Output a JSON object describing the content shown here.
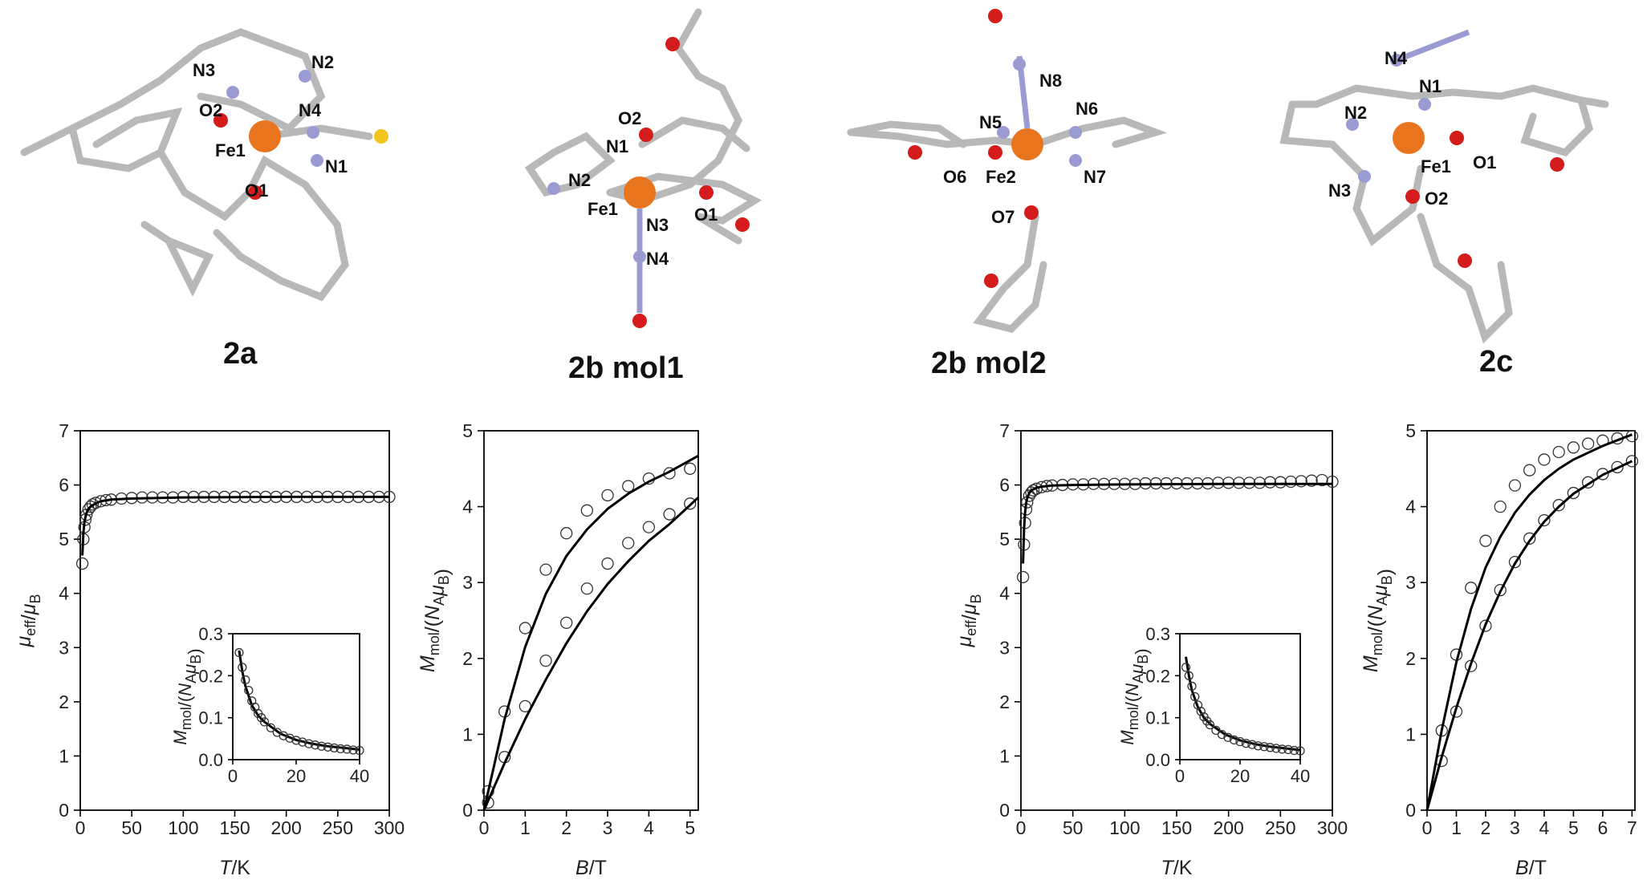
{
  "structures": [
    {
      "label": "2a",
      "metal": "Fe1",
      "atoms": [
        "N3",
        "N2",
        "O2",
        "N4",
        "Fe1",
        "N1",
        "O1"
      ]
    },
    {
      "label": "2b mol1",
      "metal": "Fe1",
      "atoms": [
        "O2",
        "N1",
        "N2",
        "Fe1",
        "N3",
        "O1",
        "N4"
      ]
    },
    {
      "label": "2b mol2",
      "metal": "Fe2",
      "atoms": [
        "N8",
        "N5",
        "N6",
        "O6",
        "Fe2",
        "N7",
        "O7"
      ]
    },
    {
      "label": "2c",
      "metal": "Fe1",
      "atoms": [
        "N4",
        "N1",
        "N2",
        "Fe1",
        "O1",
        "N3",
        "O2"
      ]
    }
  ],
  "colors": {
    "iron": "#e8741e",
    "nitrogen": "#9b9bd4",
    "oxygen": "#d41c1c",
    "sulfur": "#f2c61e",
    "carbon": "#c9c9c9",
    "curve": "#000000",
    "marker": "#333333"
  },
  "chart_data": [
    {
      "type": "scatter",
      "title": "",
      "compound": "2a",
      "xlabel": "T/K",
      "ylabel": "μeff/μB",
      "xlim": [
        0,
        300
      ],
      "ylim": [
        0,
        7
      ],
      "xticks": [
        0,
        50,
        100,
        150,
        200,
        250,
        300
      ],
      "yticks": [
        0,
        1,
        2,
        3,
        4,
        5,
        6,
        7
      ],
      "series": [
        {
          "kind": "points",
          "x": [
            2,
            3,
            4,
            5,
            6,
            8,
            10,
            12,
            15,
            20,
            25,
            30,
            40,
            50,
            60,
            70,
            80,
            90,
            100,
            110,
            120,
            130,
            140,
            150,
            160,
            170,
            180,
            190,
            200,
            210,
            220,
            230,
            240,
            250,
            260,
            270,
            280,
            290,
            300
          ],
          "y": [
            4.55,
            5.0,
            5.22,
            5.36,
            5.45,
            5.55,
            5.6,
            5.64,
            5.67,
            5.7,
            5.72,
            5.73,
            5.75,
            5.76,
            5.77,
            5.77,
            5.77,
            5.77,
            5.78,
            5.78,
            5.78,
            5.78,
            5.78,
            5.78,
            5.78,
            5.78,
            5.78,
            5.78,
            5.78,
            5.78,
            5.78,
            5.78,
            5.78,
            5.78,
            5.78,
            5.78,
            5.78,
            5.78,
            5.78
          ]
        },
        {
          "kind": "fit",
          "x": [
            2,
            3,
            4,
            5,
            6,
            8,
            10,
            15,
            20,
            30,
            50,
            100,
            200,
            300
          ],
          "y": [
            4.7,
            5.1,
            5.3,
            5.4,
            5.48,
            5.56,
            5.6,
            5.66,
            5.7,
            5.73,
            5.75,
            5.77,
            5.78,
            5.78
          ]
        }
      ],
      "inset": {
        "xlabel": "",
        "ylabel": "Mmol/(NAμB)",
        "xlim": [
          0,
          40
        ],
        "ylim": [
          0,
          0.3
        ],
        "xticks": [
          0,
          20,
          40
        ],
        "yticks": [
          0.0,
          0.1,
          0.2,
          0.3
        ],
        "points": {
          "x": [
            2,
            3,
            4,
            5,
            6,
            7,
            8,
            9,
            10,
            12,
            14,
            16,
            18,
            20,
            22,
            24,
            26,
            28,
            30,
            32,
            34,
            36,
            38,
            40
          ],
          "y": [
            0.255,
            0.22,
            0.19,
            0.165,
            0.14,
            0.125,
            0.11,
            0.1,
            0.09,
            0.076,
            0.065,
            0.057,
            0.051,
            0.046,
            0.042,
            0.038,
            0.035,
            0.032,
            0.03,
            0.028,
            0.026,
            0.025,
            0.023,
            0.022
          ]
        },
        "fit": {
          "x": [
            2,
            3,
            4,
            6,
            8,
            10,
            15,
            20,
            25,
            30,
            40
          ],
          "y": [
            0.26,
            0.21,
            0.175,
            0.13,
            0.105,
            0.09,
            0.062,
            0.047,
            0.038,
            0.032,
            0.024
          ]
        }
      }
    },
    {
      "type": "scatter",
      "title": "",
      "compound": "2a",
      "xlabel": "B/T",
      "ylabel": "Mmol/(NAμB)",
      "xlim": [
        0,
        5.2
      ],
      "ylim": [
        0,
        5
      ],
      "xticks": [
        0,
        1,
        2,
        3,
        4,
        5
      ],
      "yticks": [
        0,
        1,
        2,
        3,
        4,
        5
      ],
      "series": [
        {
          "kind": "points",
          "name": "",
          "x": [
            0.1,
            0.5,
            1.0,
            1.5,
            2.0,
            2.5,
            3.0,
            3.5,
            4.0,
            4.5,
            5.0
          ],
          "y": [
            0.25,
            1.3,
            2.4,
            3.17,
            3.65,
            3.95,
            4.15,
            4.27,
            4.37,
            4.44,
            4.5
          ]
        },
        {
          "kind": "points",
          "name": "",
          "x": [
            0.1,
            0.5,
            1.0,
            1.5,
            2.0,
            2.5,
            3.0,
            3.5,
            4.0,
            4.5,
            5.0
          ],
          "y": [
            0.1,
            0.7,
            1.37,
            1.97,
            2.47,
            2.92,
            3.25,
            3.52,
            3.73,
            3.9,
            4.04
          ]
        },
        {
          "kind": "fit",
          "x": [
            0,
            0.5,
            1.0,
            1.5,
            2.0,
            2.5,
            3.0,
            3.5,
            4.0,
            4.5,
            5.2
          ],
          "y": [
            0,
            1.2,
            2.15,
            2.85,
            3.35,
            3.7,
            3.97,
            4.17,
            4.33,
            4.46,
            4.67
          ]
        },
        {
          "kind": "fit",
          "x": [
            0,
            0.5,
            1.0,
            1.5,
            2.0,
            2.5,
            3.0,
            3.5,
            4.0,
            4.5,
            5.2
          ],
          "y": [
            0,
            0.62,
            1.2,
            1.72,
            2.2,
            2.62,
            2.98,
            3.28,
            3.55,
            3.77,
            4.12
          ]
        }
      ]
    },
    {
      "type": "scatter",
      "title": "",
      "compound": "2c",
      "xlabel": "T/K",
      "ylabel": "μeff/μB",
      "xlim": [
        0,
        300
      ],
      "ylim": [
        0,
        7
      ],
      "xticks": [
        0,
        50,
        100,
        150,
        200,
        250,
        300
      ],
      "yticks": [
        0,
        1,
        2,
        3,
        4,
        5,
        6,
        7
      ],
      "series": [
        {
          "kind": "points",
          "x": [
            2,
            3,
            4,
            5,
            6,
            8,
            10,
            12,
            15,
            20,
            25,
            30,
            40,
            50,
            60,
            70,
            80,
            90,
            100,
            110,
            120,
            130,
            140,
            150,
            160,
            170,
            180,
            190,
            200,
            210,
            220,
            230,
            240,
            250,
            260,
            270,
            280,
            290,
            300
          ],
          "y": [
            4.3,
            4.9,
            5.3,
            5.55,
            5.68,
            5.8,
            5.86,
            5.9,
            5.93,
            5.96,
            5.98,
            5.99,
            6.0,
            6.01,
            6.01,
            6.02,
            6.02,
            6.02,
            6.02,
            6.02,
            6.03,
            6.03,
            6.03,
            6.03,
            6.03,
            6.03,
            6.03,
            6.04,
            6.04,
            6.04,
            6.04,
            6.04,
            6.05,
            6.05,
            6.06,
            6.07,
            6.08,
            6.09,
            6.06
          ]
        },
        {
          "kind": "fit",
          "x": [
            2,
            3,
            4,
            5,
            6,
            8,
            10,
            15,
            20,
            30,
            50,
            100,
            200,
            300
          ],
          "y": [
            4.55,
            5.2,
            5.5,
            5.67,
            5.76,
            5.85,
            5.9,
            5.95,
            5.97,
            5.99,
            6.0,
            6.01,
            6.02,
            6.02
          ]
        }
      ],
      "inset": {
        "xlabel": "",
        "ylabel": "Mmol/(NAμB)",
        "xlim": [
          0,
          40
        ],
        "ylim": [
          0,
          0.3
        ],
        "xticks": [
          0,
          20,
          40
        ],
        "yticks": [
          0.0,
          0.1,
          0.2,
          0.3
        ],
        "points": {
          "x": [
            2,
            3,
            4,
            5,
            6,
            7,
            8,
            9,
            10,
            12,
            14,
            16,
            18,
            20,
            22,
            24,
            26,
            28,
            30,
            32,
            34,
            36,
            38,
            40
          ],
          "y": [
            0.22,
            0.2,
            0.175,
            0.15,
            0.13,
            0.115,
            0.102,
            0.092,
            0.083,
            0.07,
            0.06,
            0.053,
            0.047,
            0.043,
            0.039,
            0.036,
            0.033,
            0.031,
            0.029,
            0.027,
            0.025,
            0.024,
            0.022,
            0.021
          ]
        },
        "fit": {
          "x": [
            2,
            3,
            4,
            6,
            8,
            10,
            15,
            20,
            25,
            30,
            40
          ],
          "y": [
            0.245,
            0.2,
            0.165,
            0.125,
            0.1,
            0.085,
            0.06,
            0.046,
            0.037,
            0.031,
            0.023
          ]
        }
      }
    },
    {
      "type": "scatter",
      "title": "",
      "compound": "2c",
      "xlabel": "B/T",
      "ylabel": "Mmol/(NAμB)",
      "xlim": [
        0,
        7.1
      ],
      "ylim": [
        0,
        5
      ],
      "xticks": [
        0,
        1,
        2,
        3,
        4,
        5,
        6,
        7
      ],
      "yticks": [
        0,
        1,
        2,
        3,
        4,
        5
      ],
      "series": [
        {
          "kind": "points",
          "name": "",
          "x": [
            0.5,
            1.0,
            1.5,
            2.0,
            2.5,
            3.0,
            3.5,
            4.0,
            4.5,
            5.0,
            5.5,
            6.0,
            6.5,
            7.0
          ],
          "y": [
            1.05,
            2.05,
            2.93,
            3.55,
            4.0,
            4.28,
            4.48,
            4.62,
            4.72,
            4.78,
            4.83,
            4.87,
            4.9,
            4.93
          ]
        },
        {
          "kind": "points",
          "name": "",
          "x": [
            0.5,
            1.0,
            1.5,
            2.0,
            2.5,
            3.0,
            3.5,
            4.0,
            4.5,
            5.0,
            5.5,
            6.0,
            6.5,
            7.0
          ],
          "y": [
            0.65,
            1.3,
            1.9,
            2.43,
            2.9,
            3.27,
            3.58,
            3.82,
            4.02,
            4.18,
            4.32,
            4.43,
            4.52,
            4.6
          ]
        },
        {
          "kind": "fit",
          "x": [
            0,
            0.5,
            1.0,
            1.5,
            2.0,
            2.5,
            3.0,
            3.5,
            4.0,
            4.5,
            5.0,
            6.0,
            7.0
          ],
          "y": [
            0,
            1.05,
            1.95,
            2.65,
            3.2,
            3.6,
            3.92,
            4.16,
            4.35,
            4.5,
            4.62,
            4.8,
            4.95
          ]
        },
        {
          "kind": "fit",
          "x": [
            0,
            0.5,
            1.0,
            1.5,
            2.0,
            2.5,
            3.0,
            3.5,
            4.0,
            4.5,
            5.0,
            6.0,
            7.0
          ],
          "y": [
            0,
            0.7,
            1.35,
            1.93,
            2.45,
            2.88,
            3.25,
            3.55,
            3.8,
            4.0,
            4.17,
            4.42,
            4.6
          ]
        }
      ]
    }
  ]
}
